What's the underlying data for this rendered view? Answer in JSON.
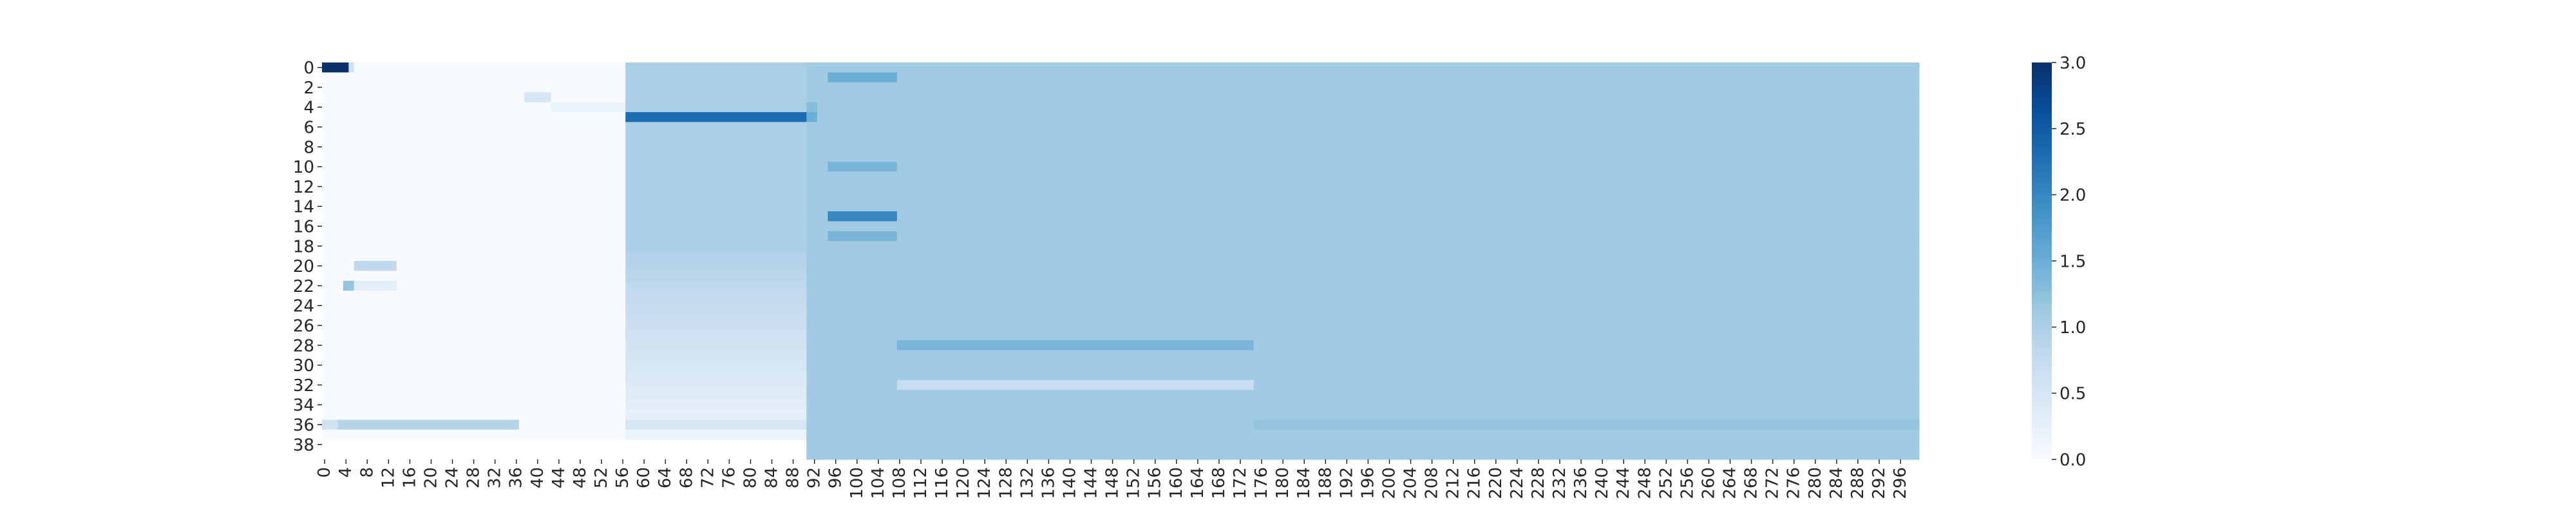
{
  "chart_data": {
    "type": "heatmap",
    "title": "",
    "xlabel": "",
    "ylabel": "",
    "n_cols": 300,
    "n_rows": 40,
    "x_tick_labels": [
      "0",
      "4",
      "8",
      "12",
      "16",
      "20",
      "24",
      "28",
      "32",
      "36",
      "40",
      "44",
      "48",
      "52",
      "56",
      "60",
      "64",
      "68",
      "72",
      "76",
      "80",
      "84",
      "88",
      "92",
      "96",
      "100",
      "104",
      "108",
      "112",
      "116",
      "120",
      "124",
      "128",
      "132",
      "136",
      "140",
      "144",
      "148",
      "152",
      "156",
      "160",
      "164",
      "168",
      "172",
      "176",
      "180",
      "184",
      "188",
      "192",
      "196",
      "200",
      "204",
      "208",
      "212",
      "216",
      "220",
      "224",
      "228",
      "232",
      "236",
      "240",
      "244",
      "248",
      "252",
      "256",
      "260",
      "264",
      "268",
      "272",
      "276",
      "280",
      "284",
      "288",
      "292",
      "296"
    ],
    "y_tick_labels": [
      "0",
      "2",
      "4",
      "6",
      "8",
      "10",
      "12",
      "14",
      "16",
      "18",
      "20",
      "22",
      "24",
      "26",
      "28",
      "30",
      "32",
      "34",
      "36",
      "38"
    ],
    "colorbar": {
      "vmin": 0,
      "vmax": 3,
      "tick_labels": [
        "0.0",
        "0.5",
        "1.0",
        "1.5",
        "2.0",
        "2.5",
        "3.0"
      ],
      "colormap": "Blues"
    },
    "grid": false,
    "missing_value_regions": "rows 39-40 have no data for columns 0-91",
    "approx_values": {
      "default_left_region_cols_0_57": 0.0,
      "background_right_region": 1.1,
      "row0_cols_0_5": 3.0,
      "row0_col_5": 0.6,
      "row1_cols_95_108": 1.5,
      "row4_cols_38_43": 0.5,
      "row5_cols_43_57": 0.2,
      "row6_cols_57_91": 2.3,
      "row6_cols_91_93": 1.5,
      "cols_57_91_rows_0_19": 1.1,
      "cols_57_91_rows_19_40": "gradient fading from about 0.9 to 0.2",
      "row11_cols_95_108": 1.4,
      "row15_cols_95_108": 2.0,
      "row17_cols_95_108": 1.4,
      "row21_cols_6_14": 0.8,
      "row23_cols_4_14": 0.3,
      "row37_cols_0_37": 0.9,
      "rows_29_30_cols_108_175": 1.4,
      "row32_cols_108_175": 0.7,
      "row37_cols_175_300": 1.2
    }
  }
}
